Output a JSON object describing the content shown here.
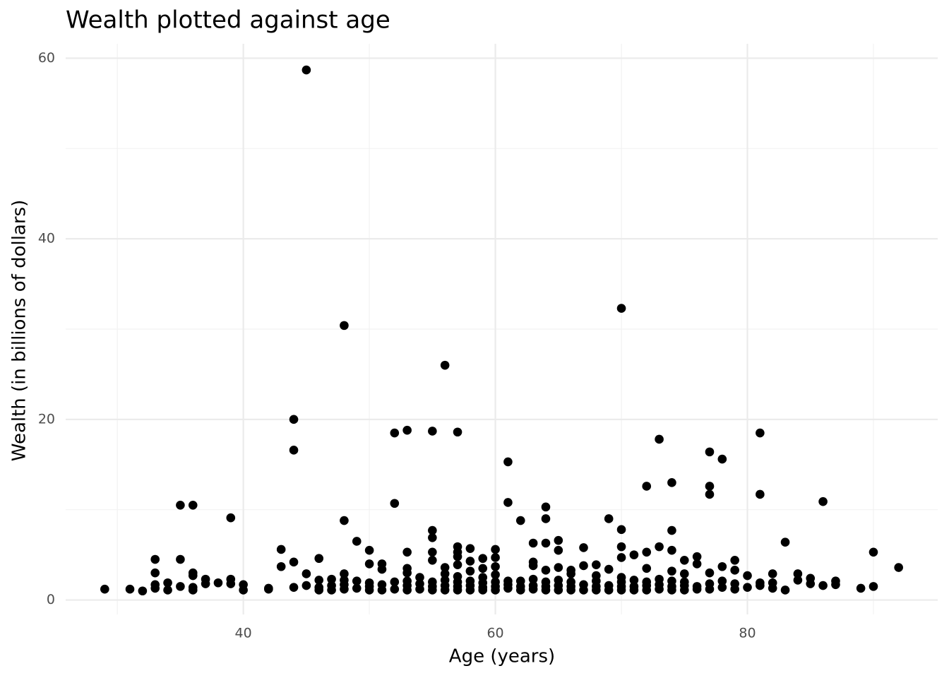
{
  "chart_data": {
    "type": "scatter",
    "title": "Wealth plotted against age",
    "x_label": "Age (years)",
    "y_label": "Wealth (in billions of dollars)",
    "color": "#000000",
    "grid": true,
    "xlim": [
      25.9,
      95.1
    ],
    "xticks": [
      40,
      60,
      80
    ],
    "ylim": [
      -1.6,
      61.6
    ],
    "yticks": [
      0,
      20,
      40,
      60
    ],
    "x": [
      45,
      48,
      70,
      56,
      44,
      44,
      52,
      53,
      55,
      57,
      73,
      81,
      77,
      78,
      61,
      72,
      74,
      77,
      77,
      81,
      86,
      35,
      36,
      52,
      61,
      64,
      39,
      48,
      62,
      64,
      69,
      55,
      55,
      70,
      74,
      49,
      63,
      64,
      65,
      83,
      43,
      50,
      57,
      57,
      58,
      60,
      65,
      67,
      70,
      73,
      74,
      90,
      53,
      55,
      33,
      35,
      46,
      55,
      57,
      59,
      60,
      70,
      71,
      72,
      75,
      76,
      79,
      44,
      50,
      51,
      58,
      63,
      67,
      68,
      76,
      78,
      92,
      43,
      51,
      53,
      56,
      57,
      59,
      60,
      63,
      64,
      65,
      66,
      69,
      72,
      74,
      79,
      33,
      36,
      45,
      48,
      53,
      56,
      58,
      61,
      66,
      70,
      75,
      77,
      80,
      82,
      84,
      29,
      31,
      32,
      33,
      33,
      34,
      34,
      35,
      36,
      36,
      36,
      37,
      37,
      38,
      39,
      39,
      40,
      40,
      42,
      42,
      44,
      45,
      46,
      46,
      46,
      47,
      47,
      47,
      48,
      48,
      48,
      49,
      49,
      50,
      50,
      50,
      51,
      51,
      52,
      52,
      53,
      53,
      53,
      54,
      54,
      54,
      55,
      55,
      55,
      56,
      56,
      56,
      57,
      57,
      57,
      57,
      58,
      58,
      58,
      59,
      59,
      59,
      59,
      60,
      60,
      60,
      60,
      61,
      61,
      62,
      62,
      62,
      63,
      63,
      63,
      64,
      64,
      64,
      65,
      65,
      65,
      66,
      66,
      66,
      67,
      67,
      68,
      68,
      68,
      68,
      69,
      69,
      70,
      70,
      70,
      71,
      71,
      71,
      72,
      72,
      72,
      73,
      73,
      73,
      74,
      74,
      74,
      75,
      75,
      75,
      76,
      76,
      77,
      77,
      78,
      78,
      79,
      79,
      80,
      81,
      81,
      82,
      82,
      83,
      84,
      85,
      85,
      86,
      87,
      87,
      89,
      90
    ],
    "values": [
      58.7,
      30.4,
      32.3,
      26.0,
      20.0,
      16.6,
      18.5,
      18.8,
      18.7,
      18.6,
      17.8,
      18.5,
      16.4,
      15.6,
      15.3,
      12.6,
      13.0,
      12.6,
      11.7,
      11.7,
      10.9,
      10.5,
      10.5,
      10.7,
      10.8,
      10.3,
      9.1,
      8.8,
      8.8,
      9.0,
      9.0,
      7.7,
      6.9,
      7.8,
      7.7,
      6.5,
      6.3,
      6.3,
      6.6,
      6.4,
      5.6,
      5.5,
      5.9,
      5.3,
      5.7,
      5.6,
      5.5,
      5.8,
      5.9,
      5.9,
      5.5,
      5.3,
      5.3,
      5.3,
      4.5,
      4.5,
      4.6,
      4.4,
      4.8,
      4.6,
      4.7,
      4.7,
      5.0,
      5.3,
      4.4,
      4.8,
      4.4,
      4.2,
      4.0,
      4.0,
      4.3,
      4.2,
      3.8,
      3.9,
      4.0,
      3.7,
      3.6,
      3.7,
      3.4,
      3.5,
      3.6,
      3.9,
      3.5,
      3.7,
      3.8,
      3.3,
      3.6,
      3.3,
      3.4,
      3.5,
      3.2,
      3.3,
      3.0,
      3.0,
      2.9,
      2.9,
      3.0,
      2.9,
      3.2,
      2.1,
      2.9,
      2.5,
      2.9,
      3.0,
      2.7,
      2.9,
      2.9,
      1.2,
      1.2,
      1.0,
      1.3,
      1.7,
      1.1,
      1.9,
      1.5,
      1.1,
      1.4,
      2.7,
      1.8,
      2.3,
      1.9,
      1.8,
      2.3,
      1.1,
      1.7,
      1.2,
      1.3,
      1.4,
      1.6,
      1.1,
      1.4,
      2.2,
      1.1,
      1.6,
      2.3,
      1.2,
      1.7,
      2.2,
      1.3,
      2.1,
      1.1,
      1.5,
      1.9,
      1.1,
      1.7,
      1.2,
      2.0,
      1.1,
      1.6,
      2.1,
      1.2,
      1.8,
      2.5,
      1.1,
      1.5,
      2.0,
      1.1,
      1.6,
      2.2,
      1.1,
      1.5,
      2.0,
      2.6,
      1.1,
      1.6,
      2.1,
      1.1,
      1.4,
      1.9,
      2.5,
      1.1,
      1.5,
      2.0,
      2.8,
      1.3,
      1.7,
      1.1,
      1.5,
      2.1,
      1.2,
      1.6,
      2.3,
      1.1,
      1.5,
      2.0,
      1.1,
      1.6,
      2.2,
      1.1,
      1.5,
      2.0,
      1.1,
      1.7,
      1.1,
      1.5,
      2.1,
      2.7,
      1.1,
      1.6,
      1.1,
      1.5,
      2.0,
      1.1,
      1.5,
      2.2,
      1.1,
      1.6,
      2.0,
      1.2,
      1.7,
      2.3,
      1.1,
      1.5,
      2.1,
      1.1,
      1.6,
      2.0,
      1.2,
      1.5,
      1.2,
      1.8,
      1.4,
      2.1,
      1.2,
      1.8,
      1.4,
      1.6,
      1.9,
      1.3,
      1.9,
      1.1,
      2.2,
      1.8,
      2.4,
      1.6,
      1.7,
      2.1,
      1.3,
      1.5
    ]
  }
}
